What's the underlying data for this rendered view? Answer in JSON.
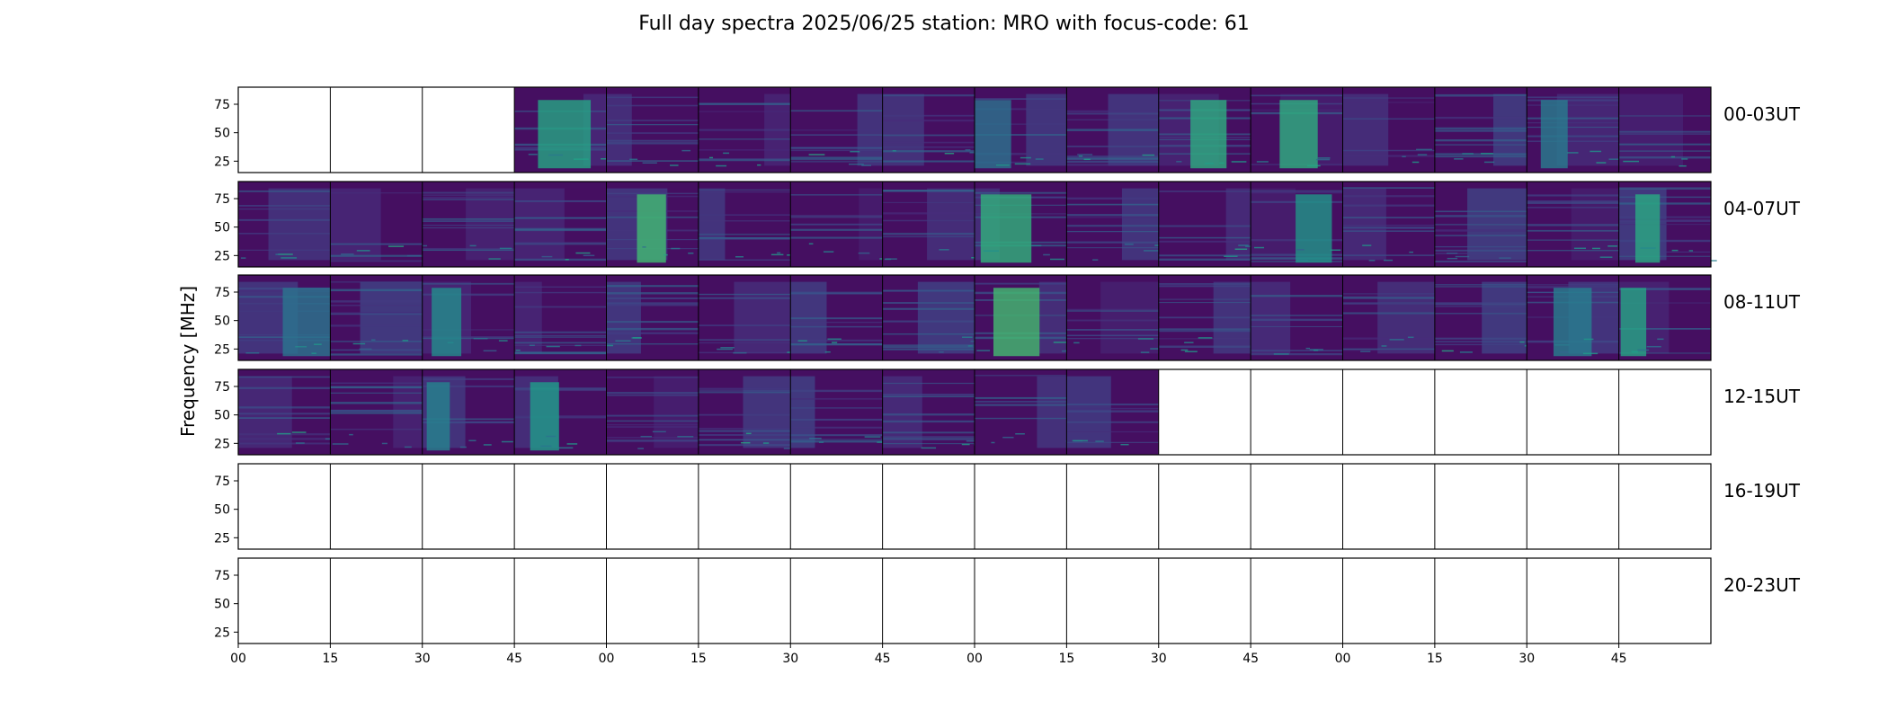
{
  "chart_data": {
    "type": "heatmap",
    "title": "Full day spectra 2025/06/25 station: MRO with focus-code: 61",
    "ylabel": "Frequency [MHz]",
    "xlabel": "",
    "yticks": [
      "25",
      "50",
      "75"
    ],
    "ytick_values": [
      25,
      50,
      75
    ],
    "ylim": [
      15,
      90
    ],
    "xticks": [
      "00",
      "15",
      "30",
      "45",
      "00",
      "15",
      "30",
      "45",
      "00",
      "15",
      "30",
      "45",
      "00",
      "15",
      "30",
      "45"
    ],
    "colormap": "viridis",
    "grid": false,
    "panels_per_row": 16,
    "minutes_per_panel": 15,
    "rows": [
      {
        "label": "00-03UT",
        "panels": [
          "empty",
          "empty",
          "empty",
          "data",
          "data",
          "data",
          "data",
          "data",
          "data",
          "data",
          "data",
          "data",
          "data",
          "data",
          "data",
          "data"
        ]
      },
      {
        "label": "04-07UT",
        "panels": [
          "data",
          "data",
          "data",
          "data",
          "data",
          "data",
          "data",
          "data",
          "data",
          "data",
          "data",
          "data",
          "data",
          "data",
          "data",
          "data"
        ]
      },
      {
        "label": "08-11UT",
        "panels": [
          "data",
          "data",
          "data",
          "data",
          "data",
          "data",
          "data",
          "data",
          "data",
          "data",
          "data",
          "data",
          "data",
          "data",
          "data",
          "data"
        ]
      },
      {
        "label": "12-15UT",
        "panels": [
          "data",
          "data",
          "data",
          "data",
          "data",
          "data",
          "data",
          "data",
          "data",
          "data",
          "empty",
          "empty",
          "empty",
          "empty",
          "empty",
          "empty"
        ]
      },
      {
        "label": "16-19UT",
        "panels": [
          "empty",
          "empty",
          "empty",
          "empty",
          "empty",
          "empty",
          "empty",
          "empty",
          "empty",
          "empty",
          "empty",
          "empty",
          "empty",
          "empty",
          "empty",
          "empty"
        ]
      },
      {
        "label": "20-23UT",
        "panels": [
          "empty",
          "empty",
          "empty",
          "empty",
          "empty",
          "empty",
          "empty",
          "empty",
          "empty",
          "empty",
          "empty",
          "empty",
          "empty",
          "empty",
          "empty",
          "empty"
        ]
      }
    ],
    "colors": {
      "background_low": "#440154",
      "mid": "#3b528b",
      "teal": "#21918c",
      "green": "#5ec962",
      "high": "#fde725",
      "axis": "#000000"
    }
  }
}
